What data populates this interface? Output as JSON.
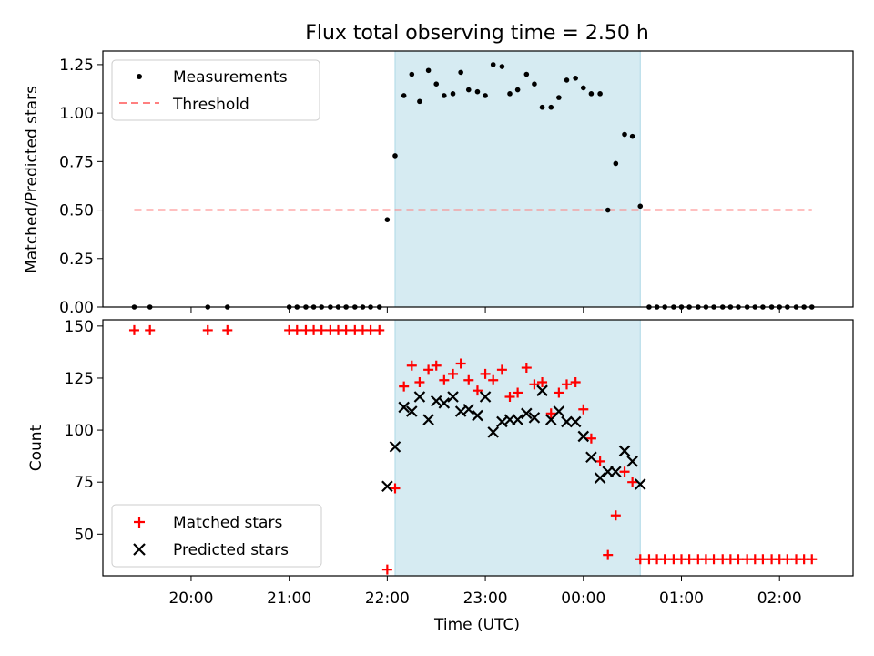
{
  "title": "Flux total observing time = 2.50 h",
  "colors": {
    "window_fill": "#add8e6",
    "threshold": "#ff8080",
    "matched": "#ff0000",
    "predicted": "#000000",
    "measurement": "#000000"
  },
  "chart_data": [
    {
      "type": "scatter",
      "panel": "top",
      "xlabel": "",
      "ylabel": "Matched/Predicted stars",
      "ylim": [
        0,
        1.32
      ],
      "yticks": [
        0,
        0.25,
        0.5,
        0.75,
        1.0,
        1.25
      ],
      "ytick_labels": [
        "0.00",
        "0.25",
        "0.50",
        "0.75",
        "1.00",
        "1.25"
      ],
      "x_unit": "hours since 20:00 UTC",
      "xlim": [
        -0.9,
        6.75
      ],
      "xticks": [
        0,
        1,
        2,
        3,
        4,
        5,
        6
      ],
      "highlight_window": [
        2.08,
        4.58
      ],
      "legend": {
        "placement": "upper-left",
        "entries": [
          "Measurements",
          "Threshold"
        ]
      },
      "series": [
        {
          "name": "Measurements",
          "marker": "dot",
          "x": [
            -0.58,
            -0.42,
            0.17,
            0.37,
            1.0,
            1.08,
            1.17,
            1.25,
            1.33,
            1.42,
            1.5,
            1.58,
            1.67,
            1.75,
            1.83,
            1.92,
            2.0,
            2.08,
            2.17,
            2.25,
            2.33,
            2.42,
            2.5,
            2.58,
            2.67,
            2.75,
            2.83,
            2.92,
            3.0,
            3.08,
            3.17,
            3.25,
            3.33,
            3.42,
            3.5,
            3.58,
            3.67,
            3.75,
            3.83,
            3.92,
            4.0,
            4.08,
            4.17,
            4.25,
            4.33,
            4.42,
            4.5,
            4.58,
            4.67,
            4.75,
            4.83,
            4.92,
            5.0,
            5.08,
            5.17,
            5.25,
            5.33,
            5.42,
            5.5,
            5.58,
            5.67,
            5.75,
            5.83,
            5.92,
            6.0,
            6.08,
            6.17,
            6.25,
            6.33
          ],
          "y": [
            0,
            0,
            0,
            0,
            0,
            0,
            0,
            0,
            0,
            0,
            0,
            0,
            0,
            0,
            0,
            0,
            0.45,
            0.78,
            1.09,
            1.2,
            1.06,
            1.22,
            1.15,
            1.09,
            1.1,
            1.21,
            1.12,
            1.11,
            1.09,
            1.25,
            1.24,
            1.1,
            1.12,
            1.2,
            1.15,
            1.03,
            1.03,
            1.08,
            1.17,
            1.18,
            1.13,
            1.1,
            1.1,
            0.5,
            0.74,
            0.89,
            0.88,
            0.52,
            0,
            0,
            0,
            0,
            0,
            0,
            0,
            0,
            0,
            0,
            0,
            0,
            0,
            0,
            0,
            0,
            0,
            0,
            0,
            0,
            0
          ]
        },
        {
          "name": "Threshold",
          "style": "dashed",
          "x": [
            -0.58,
            2.33,
            4.58,
            6.33
          ],
          "y": [
            0.5,
            0.5,
            0.5,
            0.5
          ]
        }
      ]
    },
    {
      "type": "scatter",
      "panel": "bottom",
      "xlabel": "Time (UTC)",
      "ylabel": "Count",
      "ylim": [
        30,
        153
      ],
      "yticks": [
        50,
        75,
        100,
        125,
        150
      ],
      "x_unit": "hours since 20:00 UTC",
      "xlim": [
        -0.9,
        6.75
      ],
      "xticks": [
        0,
        1,
        2,
        3,
        4,
        5,
        6
      ],
      "xtick_labels": [
        "20:00",
        "21:00",
        "22:00",
        "23:00",
        "00:00",
        "01:00",
        "02:00"
      ],
      "highlight_window": [
        2.08,
        4.58
      ],
      "legend": {
        "placement": "lower-left",
        "entries": [
          "Matched stars",
          "Predicted stars"
        ]
      },
      "series": [
        {
          "name": "Matched stars",
          "marker": "plus",
          "x": [
            -0.58,
            -0.42,
            0.17,
            0.37,
            1.0,
            1.08,
            1.17,
            1.25,
            1.33,
            1.42,
            1.5,
            1.58,
            1.67,
            1.75,
            1.83,
            1.92,
            2.0,
            2.08,
            2.17,
            2.25,
            2.33,
            2.42,
            2.5,
            2.58,
            2.67,
            2.75,
            2.83,
            2.92,
            3.0,
            3.08,
            3.17,
            3.25,
            3.33,
            3.42,
            3.5,
            3.58,
            3.67,
            3.75,
            3.83,
            3.92,
            4.0,
            4.08,
            4.17,
            4.25,
            4.33,
            4.42,
            4.5,
            4.58,
            4.67,
            4.75,
            4.83,
            4.92,
            5.0,
            5.08,
            5.17,
            5.25,
            5.33,
            5.42,
            5.5,
            5.58,
            5.67,
            5.75,
            5.83,
            5.92,
            6.0,
            6.08,
            6.17,
            6.25,
            6.33
          ],
          "y": [
            148,
            148,
            148,
            148,
            148,
            148,
            148,
            148,
            148,
            148,
            148,
            148,
            148,
            148,
            148,
            148,
            33,
            72,
            121,
            131,
            123,
            129,
            131,
            124,
            127,
            132,
            124,
            119,
            127,
            124,
            129,
            116,
            118,
            130,
            122,
            123,
            108,
            118,
            122,
            123,
            110,
            96,
            85,
            40,
            59,
            80,
            75,
            38,
            38,
            38,
            38,
            38,
            38,
            38,
            38,
            38,
            38,
            38,
            38,
            38,
            38,
            38,
            38,
            38,
            38,
            38,
            38,
            38,
            38
          ]
        },
        {
          "name": "Predicted stars",
          "marker": "x",
          "x": [
            2.0,
            2.08,
            2.17,
            2.25,
            2.33,
            2.42,
            2.5,
            2.58,
            2.67,
            2.75,
            2.83,
            2.92,
            3.0,
            3.08,
            3.17,
            3.25,
            3.33,
            3.42,
            3.5,
            3.58,
            3.67,
            3.75,
            3.83,
            3.92,
            4.0,
            4.08,
            4.17,
            4.25,
            4.33,
            4.42,
            4.5,
            4.58
          ],
          "y": [
            73,
            92,
            111,
            109,
            116,
            105,
            114,
            113,
            116,
            109,
            110,
            107,
            116,
            99,
            104,
            105,
            105,
            108,
            106,
            119,
            105,
            109,
            104,
            104,
            97,
            87,
            77,
            80,
            80,
            90,
            85,
            74
          ]
        }
      ]
    }
  ]
}
